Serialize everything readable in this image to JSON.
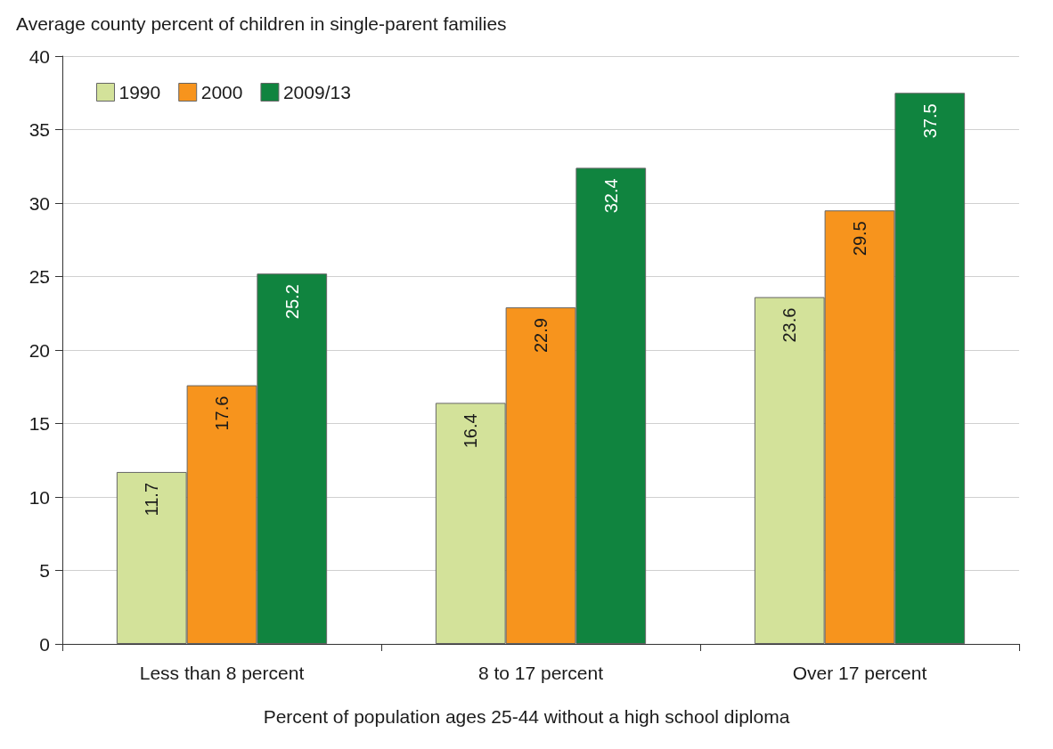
{
  "chart_data": {
    "type": "bar",
    "ylabel": "Average county percent of children in single-parent families",
    "xlabel": "Percent of population ages 25-44 without a high school diploma",
    "categories": [
      "Less than 8 percent",
      "8 to 17 percent",
      "Over 17 percent"
    ],
    "series": [
      {
        "name": "1990",
        "color": "#d3e29a",
        "values": [
          11.7,
          16.4,
          23.6
        ]
      },
      {
        "name": "2000",
        "color": "#f7941d",
        "values": [
          17.6,
          22.9,
          29.5
        ]
      },
      {
        "name": "2009/13",
        "color": "#10843f",
        "values": [
          25.2,
          32.4,
          37.5
        ]
      }
    ],
    "ylim": [
      0,
      40
    ],
    "yticks": [
      0,
      5,
      10,
      15,
      20,
      25,
      30,
      35,
      40
    ],
    "grid": "y",
    "legend": "top left",
    "data_labels": true
  }
}
